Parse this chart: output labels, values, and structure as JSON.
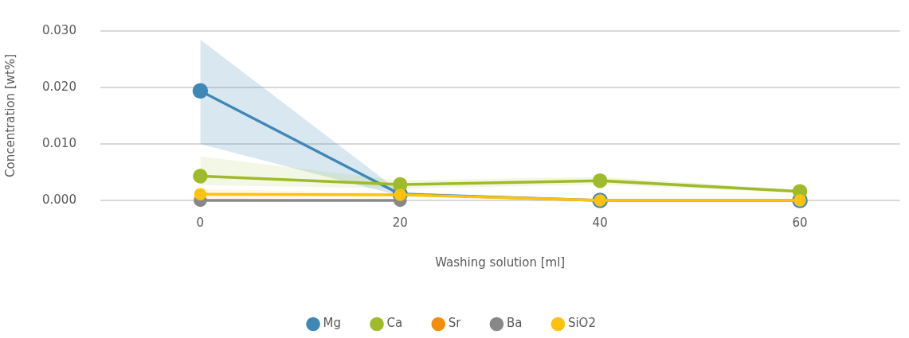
{
  "chart_data": {
    "type": "line",
    "xlabel": "Washing solution [ml]",
    "ylabel": "Concentration [wt%]",
    "x": [
      0,
      20,
      40,
      60
    ],
    "xlim": [
      -10,
      70
    ],
    "xticks": [
      0,
      20,
      40,
      60
    ],
    "ylim": [
      0,
      0.03
    ],
    "yticks": [
      {
        "value": 0,
        "label": "0.000"
      },
      {
        "value": 0.01,
        "label": "0.010"
      },
      {
        "value": 0.02,
        "label": "0.020"
      },
      {
        "value": 0.03,
        "label": "0.030"
      }
    ],
    "grid": "y",
    "legend": "bottom",
    "marker": "circle",
    "line_style": "solid",
    "series": [
      {
        "name": "Mg",
        "color": "#3f88b6",
        "values": [
          0.0194,
          0.0011,
          0,
          0
        ],
        "lower": [
          0.01,
          0.0008,
          0,
          0
        ],
        "upper": [
          0.0285,
          0.0015,
          0,
          0
        ]
      },
      {
        "name": "Ca",
        "color": "#9fba2b",
        "values": [
          0.0043,
          0.0028,
          0.0035,
          0.0016
        ],
        "lower": [
          0.0027,
          0.0021,
          0.0028,
          0.0013
        ],
        "upper": [
          0.0078,
          0.0035,
          0.0042,
          0.0019
        ]
      },
      {
        "name": "Sr",
        "color": "#f28e0c",
        "values": [
          null,
          null,
          null,
          null
        ]
      },
      {
        "name": "Ba",
        "color": "#888888",
        "values": [
          0,
          0,
          null,
          null
        ]
      },
      {
        "name": "SiO2",
        "color": "#fdc20d",
        "values": [
          0.0011,
          0.001,
          0,
          0
        ],
        "lower": [
          0.0002,
          0.0007,
          0,
          0
        ],
        "upper": [
          0.002,
          0.0013,
          0,
          0
        ]
      }
    ]
  }
}
